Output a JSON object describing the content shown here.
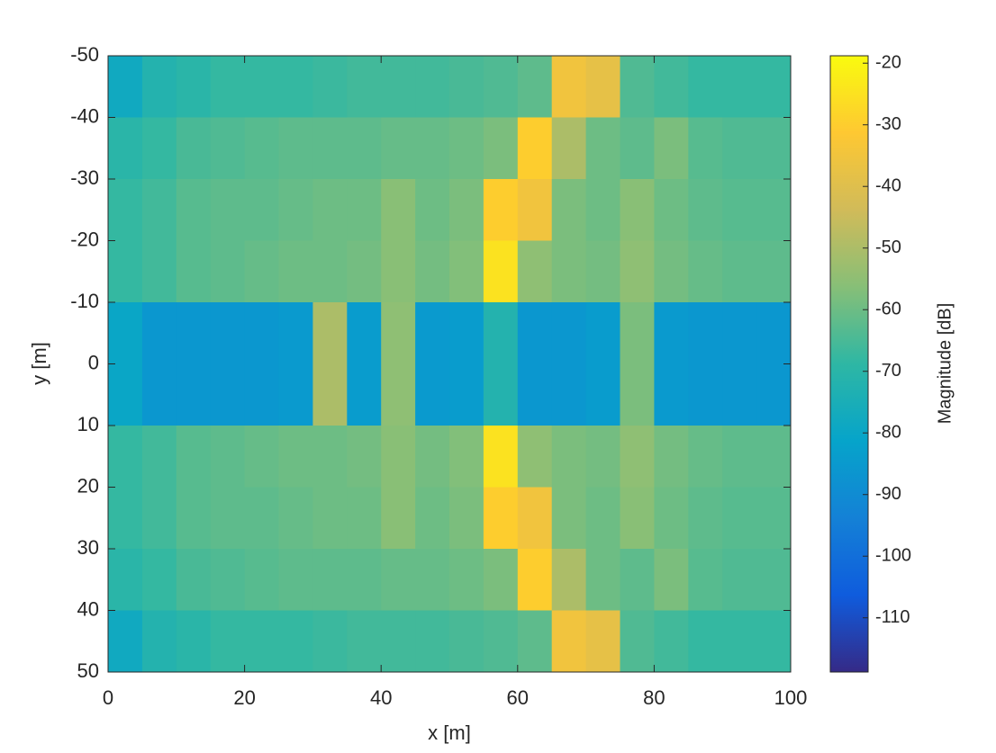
{
  "chart_data": {
    "type": "heatmap",
    "xlabel": "x [m]",
    "ylabel": "y [m]",
    "colorbar_label": "Magnitude [dB]",
    "xlim": [
      0,
      100
    ],
    "xticks": [
      0,
      20,
      40,
      60,
      80,
      100
    ],
    "ylim": [
      50,
      -50
    ],
    "yticks": [
      -50,
      -40,
      -30,
      -20,
      -10,
      0,
      10,
      20,
      30,
      40,
      50
    ],
    "clim": [
      -118.8,
      -18.8
    ],
    "cticks": [
      -110,
      -100,
      -90,
      -80,
      -70,
      -60,
      -50,
      -40,
      -30,
      -20
    ],
    "colormap": [
      "#352a87",
      "#0f5cdd",
      "#1481d6",
      "#06a4ca",
      "#2eb7a4",
      "#87bf77",
      "#d1bb59",
      "#fec832",
      "#f9fb0e"
    ],
    "x": [
      2.5,
      7.5,
      12.5,
      17.5,
      22.5,
      27.5,
      32.5,
      37.5,
      42.5,
      47.5,
      52.5,
      57.5,
      62.5,
      67.5,
      72.5,
      77.5,
      82.5,
      87.5,
      92.5,
      97.5
    ],
    "y": [
      -45,
      -35,
      -25,
      -15,
      -5,
      5,
      15,
      25,
      35,
      45
    ],
    "z": [
      [
        -78,
        -72,
        -70,
        -68,
        -68,
        -68,
        -67,
        -66,
        -66,
        -66,
        -65,
        -64,
        -62,
        -35,
        -38,
        -64,
        -66,
        -68,
        -68,
        -68
      ],
      [
        -70,
        -68,
        -65,
        -64,
        -63,
        -62,
        -62,
        -62,
        -61,
        -61,
        -60,
        -58,
        -30,
        -50,
        -60,
        -62,
        -58,
        -63,
        -64,
        -64
      ],
      [
        -68,
        -66,
        -63,
        -62,
        -62,
        -61,
        -60,
        -60,
        -56,
        -60,
        -58,
        -30,
        -35,
        -58,
        -60,
        -56,
        -60,
        -62,
        -63,
        -63
      ],
      [
        -68,
        -66,
        -63,
        -62,
        -61,
        -60,
        -60,
        -59,
        -56,
        -59,
        -57,
        -25,
        -55,
        -58,
        -59,
        -55,
        -59,
        -61,
        -62,
        -62
      ],
      [
        -80,
        -86,
        -86,
        -86,
        -86,
        -85,
        -50,
        -84,
        -55,
        -85,
        -84,
        -72,
        -86,
        -86,
        -84,
        -58,
        -85,
        -86,
        -86,
        -86
      ],
      [
        -80,
        -86,
        -86,
        -86,
        -86,
        -85,
        -50,
        -84,
        -55,
        -85,
        -84,
        -72,
        -86,
        -86,
        -84,
        -58,
        -85,
        -86,
        -86,
        -86
      ],
      [
        -68,
        -66,
        -63,
        -62,
        -61,
        -60,
        -60,
        -59,
        -56,
        -59,
        -57,
        -25,
        -55,
        -58,
        -59,
        -55,
        -59,
        -61,
        -62,
        -62
      ],
      [
        -68,
        -66,
        -63,
        -62,
        -62,
        -61,
        -60,
        -60,
        -56,
        -60,
        -58,
        -30,
        -35,
        -58,
        -60,
        -56,
        -60,
        -62,
        -63,
        -63
      ],
      [
        -70,
        -68,
        -65,
        -64,
        -63,
        -62,
        -62,
        -62,
        -61,
        -61,
        -60,
        -58,
        -30,
        -50,
        -60,
        -62,
        -58,
        -63,
        -64,
        -64
      ],
      [
        -78,
        -72,
        -70,
        -68,
        -68,
        -68,
        -67,
        -66,
        -66,
        -66,
        -65,
        -64,
        -62,
        -35,
        -38,
        -64,
        -66,
        -68,
        -68,
        -68
      ]
    ]
  }
}
